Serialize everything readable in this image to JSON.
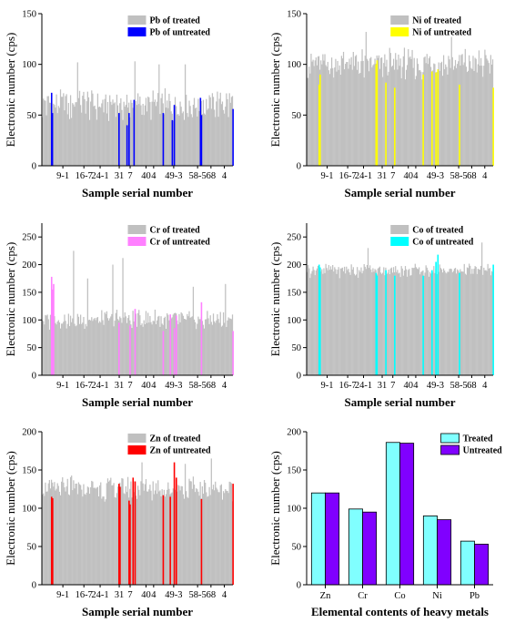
{
  "chart_data": [
    {
      "type": "bar",
      "xlabel": "Sample serial number",
      "ylabel": "Electronic number (cps)",
      "ylim": [
        0,
        150
      ],
      "yticks": [
        0,
        50,
        100,
        150
      ],
      "xtick_labels": [
        "9-1",
        "16-7",
        "24-1",
        "31",
        "7",
        "40",
        "4",
        "49-3",
        "58-5",
        "68",
        "4"
      ],
      "legend_position": "top-right",
      "series": [
        {
          "name": "Pb of treated",
          "color": "#c0c0c0",
          "count": 190,
          "base": 60,
          "amplitude": 12,
          "spikes": [
            [
              35,
              102
            ],
            [
              92,
              103
            ],
            [
              116,
              100
            ],
            [
              142,
              100
            ]
          ]
        },
        {
          "name": "Pb of untreated",
          "color": "#0000ff",
          "bars": [
            [
              9,
              72
            ],
            [
              9.8,
              52
            ],
            [
              76,
              52
            ],
            [
              84,
              40
            ],
            [
              86,
              52
            ],
            [
              91,
              65
            ],
            [
              120,
              52
            ],
            [
              129,
              45
            ],
            [
              131,
              60
            ],
            [
              157,
              67
            ],
            [
              158,
              50
            ],
            [
              190,
              56
            ]
          ]
        }
      ]
    },
    {
      "type": "bar",
      "xlabel": "Sample serial number",
      "ylabel": "Electronic number (cps)",
      "ylim": [
        0,
        150
      ],
      "yticks": [
        0,
        50,
        100,
        150
      ],
      "xtick_labels": [
        "9-1",
        "16-7",
        "24-1",
        "31",
        "7",
        "40",
        "4",
        "49-3",
        "58-5",
        "68",
        "4"
      ],
      "legend_position": "top-right",
      "series": [
        {
          "name": "Ni of treated",
          "color": "#c0c0c0",
          "count": 190,
          "base": 100,
          "amplitude": 12,
          "spikes": [
            [
              60,
              132
            ],
            [
              147,
              127
            ]
          ]
        },
        {
          "name": "Ni of untreated",
          "color": "#ffff00",
          "bars": [
            [
              12,
              80
            ],
            [
              13,
              90
            ],
            [
              70,
              100
            ],
            [
              71,
              104
            ],
            [
              80,
              82
            ],
            [
              89,
              77
            ],
            [
              118,
              90
            ],
            [
              127,
              93
            ],
            [
              131,
              92
            ],
            [
              133,
              95
            ],
            [
              155,
              80
            ],
            [
              190,
              77
            ]
          ]
        }
      ]
    },
    {
      "type": "bar",
      "xlabel": "Sample serial number",
      "ylabel": "Electronic number (cps)",
      "ylim": [
        0,
        275
      ],
      "yticks": [
        0,
        50,
        100,
        150,
        200,
        250
      ],
      "xtick_labels": [
        "9-1",
        "16-7",
        "24-1",
        "31",
        "7",
        "40",
        "4",
        "49-3",
        "58-5",
        "68",
        "4"
      ],
      "legend_position": "top-right",
      "series": [
        {
          "name": "Cr of treated",
          "color": "#c0c0c0",
          "count": 190,
          "base": 100,
          "amplitude": 14,
          "spikes": [
            [
              31,
              225
            ],
            [
              45,
              175
            ],
            [
              70,
              200
            ],
            [
              80,
              212
            ],
            [
              150,
              160
            ],
            [
              182,
              165
            ]
          ]
        },
        {
          "name": "Cr of untreated",
          "color": "#ff80ff",
          "bars": [
            [
              9,
              178
            ],
            [
              10,
              155
            ],
            [
              11,
              165
            ],
            [
              76,
              95
            ],
            [
              87,
              90
            ],
            [
              92,
              120
            ],
            [
              120,
              80
            ],
            [
              127,
              110
            ],
            [
              131,
              85
            ],
            [
              133,
              108
            ],
            [
              158,
              132
            ],
            [
              190,
              80
            ]
          ]
        }
      ]
    },
    {
      "type": "bar",
      "xlabel": "Sample serial number",
      "ylabel": "Electronic number (cps)",
      "ylim": [
        0,
        275
      ],
      "yticks": [
        0,
        50,
        100,
        150,
        200,
        250
      ],
      "xtick_labels": [
        "9-1",
        "16-7",
        "24-1",
        "31",
        "7",
        "40",
        "4",
        "49-3",
        "58-5",
        "68",
        "4"
      ],
      "legend_position": "top-right",
      "series": [
        {
          "name": "Co of treated",
          "color": "#c0c0c0",
          "count": 190,
          "base": 190,
          "amplitude": 10,
          "spikes": [
            [
              62,
              230
            ],
            [
              178,
              240
            ]
          ]
        },
        {
          "name": "Co of untreated",
          "color": "#00ffff",
          "bars": [
            [
              12,
              200
            ],
            [
              13,
              195
            ],
            [
              70,
              185
            ],
            [
              71,
              180
            ],
            [
              80,
              190
            ],
            [
              89,
              180
            ],
            [
              118,
              180
            ],
            [
              127,
              190
            ],
            [
              131,
              205
            ],
            [
              133,
              218
            ],
            [
              155,
              185
            ],
            [
              190,
              200
            ]
          ]
        }
      ]
    },
    {
      "type": "bar",
      "xlabel": "Sample serial number",
      "ylabel": "Electronic number (cps)",
      "ylim": [
        0,
        200
      ],
      "yticks": [
        0,
        50,
        100,
        150,
        200
      ],
      "xtick_labels": [
        "9-1",
        "16-7",
        "24-1",
        "31",
        "7",
        "40",
        "4",
        "49-3",
        "58-5",
        "68",
        "4"
      ],
      "legend_position": "top-right",
      "series": [
        {
          "name": "Zn of treated",
          "color": "#c0c0c0",
          "count": 190,
          "base": 125,
          "amplitude": 12,
          "spikes": [
            [
              99,
              160
            ],
            [
              142,
              158
            ],
            [
              168,
              165
            ]
          ]
        },
        {
          "name": "Zn of untreated",
          "color": "#ff0000",
          "bars": [
            [
              9,
              115
            ],
            [
              10,
              113
            ],
            [
              76,
              132
            ],
            [
              77,
              128
            ],
            [
              86,
              110
            ],
            [
              87,
              105
            ],
            [
              90,
              140
            ],
            [
              92,
              135
            ],
            [
              120,
              117
            ],
            [
              127,
              115
            ],
            [
              131,
              160
            ],
            [
              133,
              140
            ],
            [
              158,
              112
            ],
            [
              190,
              132
            ]
          ]
        }
      ]
    },
    {
      "type": "bar",
      "xlabel": "Elemental contents of heavy metals",
      "ylabel": "Electronic number (cps)",
      "ylim": [
        0,
        200
      ],
      "yticks": [
        0,
        50,
        100,
        150,
        200
      ],
      "legend_position": "top-right",
      "categories": [
        "Zn",
        "Cr",
        "Co",
        "Ni",
        "Pb"
      ],
      "series": [
        {
          "name": "Treated",
          "color": "#80ffff",
          "values": [
            120,
            99,
            186,
            90,
            57
          ]
        },
        {
          "name": "Untreated",
          "color": "#8000ff",
          "values": [
            120,
            95,
            185,
            85,
            53
          ]
        }
      ]
    }
  ]
}
